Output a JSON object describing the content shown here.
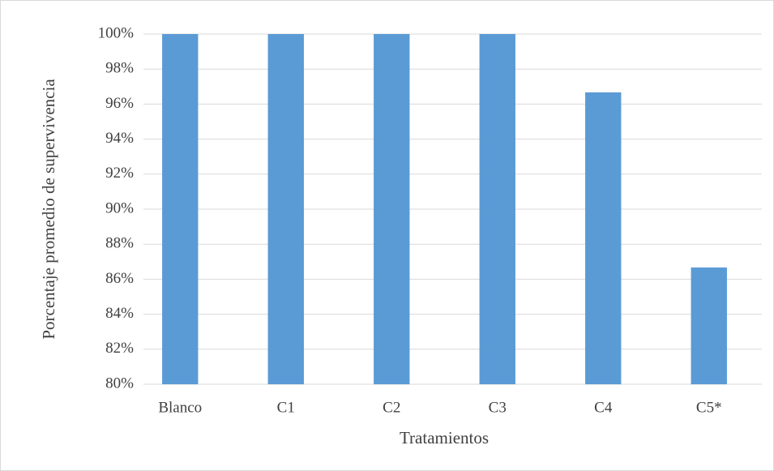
{
  "chart_data": {
    "type": "bar",
    "categories": [
      "Blanco",
      "C1",
      "C2",
      "C3",
      "C4",
      "C5*"
    ],
    "values": [
      100,
      100,
      100,
      100,
      96.67,
      86.67
    ],
    "color": "#5b9bd5",
    "ylim": [
      80,
      100
    ],
    "yticks": [
      {
        "value": 80,
        "label": "80%"
      },
      {
        "value": 82,
        "label": "82%"
      },
      {
        "value": 84,
        "label": "84%"
      },
      {
        "value": 86,
        "label": "86%"
      },
      {
        "value": 88,
        "label": "88%"
      },
      {
        "value": 90,
        "label": "90%"
      },
      {
        "value": 92,
        "label": "92%"
      },
      {
        "value": 94,
        "label": "94%"
      },
      {
        "value": 96,
        "label": "96%"
      },
      {
        "value": 98,
        "label": "98%"
      },
      {
        "value": 100,
        "label": "100%"
      }
    ],
    "xlabel": "Tratamientos",
    "ylabel": "Porcentaje promedio de supervivencia",
    "grid": true
  }
}
